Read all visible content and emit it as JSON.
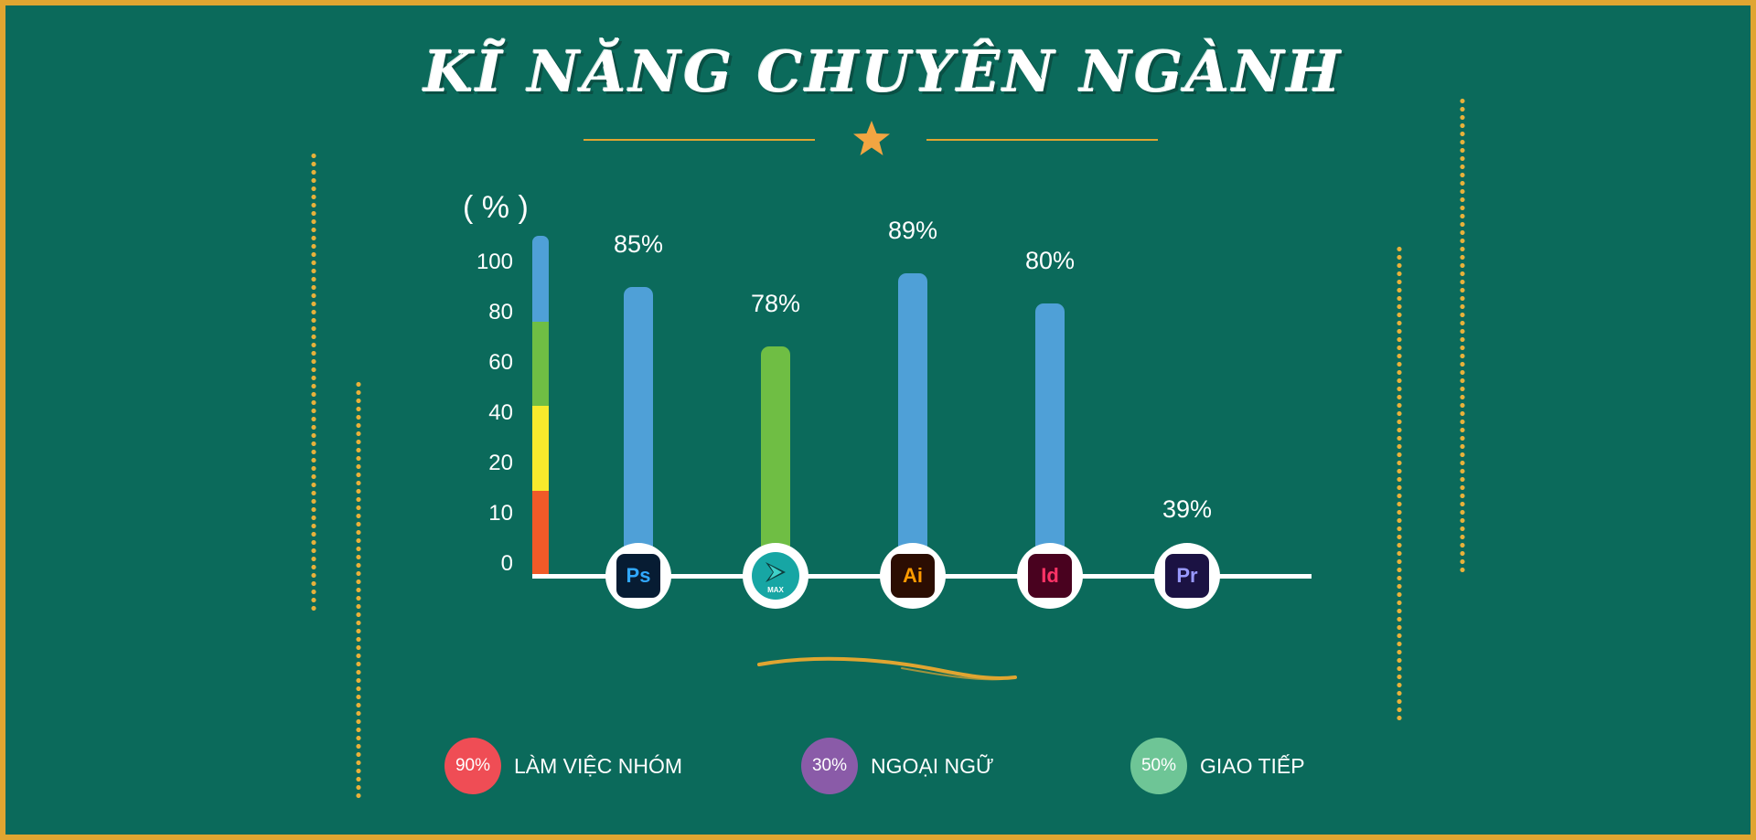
{
  "header": {
    "title": "KĨ NĂNG CHUYÊN NGÀNH"
  },
  "colors": {
    "background": "#0b6a5b",
    "border": "#e0a531",
    "accent": "#e0a531",
    "star": "#f2a541",
    "blue": "#4fa0d7",
    "green": "#6fbe44",
    "yellow": "#f7ea2c",
    "orange": "#f05a28"
  },
  "chart_data": {
    "type": "bar",
    "unit_label": "( % )",
    "yticks": [
      "100",
      "80",
      "60",
      "40",
      "20",
      "10",
      "0"
    ],
    "scale_bar": [
      {
        "color": "#f05a28"
      },
      {
        "color": "#f7ea2c"
      },
      {
        "color": "#6fbe44"
      },
      {
        "color": "#4fa0d7"
      }
    ],
    "series": [
      {
        "label": "85%",
        "value": 85,
        "color": "#4fa0d7",
        "icon": "photoshop-icon",
        "icon_text": "Ps"
      },
      {
        "label": "78%",
        "value": 78,
        "color": "#6fbe44",
        "icon": "3ds-max-icon",
        "icon_text": "MAX"
      },
      {
        "label": "89%",
        "value": 89,
        "color": "#4fa0d7",
        "icon": "illustrator-icon",
        "icon_text": "Ai"
      },
      {
        "label": "80%",
        "value": 80,
        "color": "#4fa0d7",
        "icon": "indesign-icon",
        "icon_text": "Id"
      },
      {
        "label": "39%",
        "value": 39,
        "color": "#f7ea2c",
        "icon": "premiere-icon",
        "icon_text": "Pr"
      }
    ]
  },
  "legend": [
    {
      "value": "90%",
      "label": "LÀM VIỆC NHÓM",
      "color": "#ef4d55"
    },
    {
      "value": "30%",
      "label": "NGOẠI NGỮ",
      "color": "#8a5ba8"
    },
    {
      "value": "50%",
      "label": "GIAO TIẾP",
      "color": "#6ec596"
    }
  ]
}
